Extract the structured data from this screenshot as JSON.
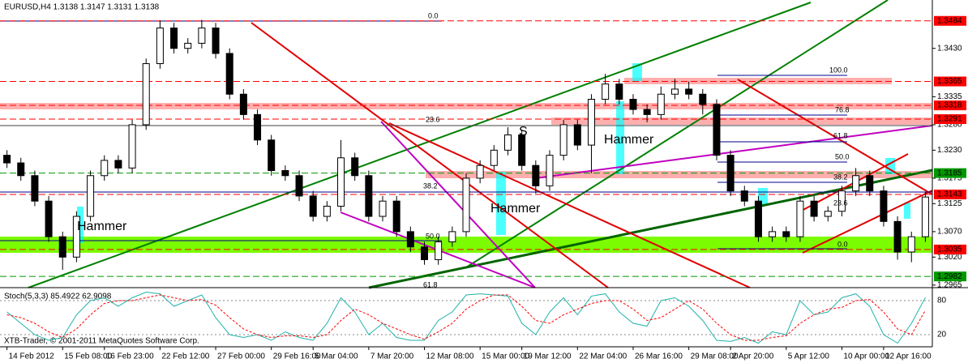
{
  "chart_data": [
    {
      "type": "candlestick",
      "title": "EURUSD,H4  1.3138 1.3147 1.3131 1.3138",
      "categories": [
        "14 Feb 2012",
        null,
        null,
        null,
        "15 Feb 08:00",
        null,
        null,
        "16 Feb 23:00",
        null,
        null,
        null,
        "22 Feb 12:00",
        null,
        null,
        null,
        "27 Feb 00:00",
        null,
        null,
        null,
        "29 Feb 16:00",
        null,
        null,
        "5 Mar 04:00",
        null,
        null,
        null,
        "7 Mar 20:00",
        null,
        null,
        null,
        "12 Mar 08:00",
        null,
        null,
        null,
        "15 Mar 00:00",
        null,
        null,
        "19 Mar 12:00",
        null,
        null,
        null,
        "22 Mar 04:00",
        null,
        null,
        null,
        "26 Mar 16:00",
        null,
        null,
        null,
        "29 Mar 08:00",
        null,
        null,
        "2 Apr 20:00",
        null,
        null,
        null,
        "5 Apr 12:00",
        null,
        null,
        null,
        "10 Apr 00:00",
        null,
        null,
        "12 Apr 16:00",
        null,
        null,
        null
      ],
      "open": [
        1.322,
        1.3205,
        1.318,
        1.313,
        1.306,
        1.302,
        1.31,
        1.318,
        1.321,
        1.3195,
        1.328,
        1.34,
        1.347,
        1.343,
        1.344,
        1.347,
        1.342,
        1.334,
        1.33,
        1.325,
        1.319,
        1.318,
        1.314,
        1.31,
        1.312,
        1.3215,
        1.318,
        1.31,
        1.313,
        1.307,
        1.304,
        1.3015,
        1.305,
        1.307,
        1.3175,
        1.32,
        1.323,
        1.326,
        1.32,
        1.316,
        1.322,
        1.328,
        1.324,
        1.333,
        1.336,
        1.333,
        1.331,
        1.33,
        1.334,
        1.335,
        1.334,
        1.332,
        1.322,
        1.315,
        1.313,
        1.306,
        1.307,
        1.306,
        1.313,
        1.31,
        1.311,
        1.315,
        1.318,
        1.315,
        1.309,
        1.303,
        1.306
      ],
      "high": [
        1.323,
        1.3215,
        1.319,
        1.314,
        1.307,
        1.311,
        1.319,
        1.322,
        1.322,
        1.329,
        1.341,
        1.3485,
        1.348,
        1.345,
        1.3486,
        1.348,
        1.343,
        1.335,
        1.331,
        1.326,
        1.32,
        1.319,
        1.315,
        1.313,
        1.325,
        1.3225,
        1.319,
        1.314,
        1.314,
        1.308,
        1.305,
        1.306,
        1.308,
        1.3185,
        1.321,
        1.324,
        1.3275,
        1.327,
        1.321,
        1.323,
        1.329,
        1.329,
        1.334,
        1.338,
        1.337,
        1.334,
        1.332,
        1.3355,
        1.337,
        1.3365,
        1.335,
        1.333,
        1.323,
        1.316,
        1.314,
        1.308,
        1.308,
        1.314,
        1.314,
        1.312,
        1.316,
        1.3195,
        1.319,
        1.316,
        1.31,
        1.307,
        1.3147
      ],
      "low": [
        1.3195,
        1.317,
        1.312,
        1.305,
        1.2995,
        1.301,
        1.309,
        1.317,
        1.3185,
        1.3185,
        1.327,
        1.339,
        1.342,
        1.342,
        1.343,
        1.341,
        1.333,
        1.329,
        1.324,
        1.318,
        1.317,
        1.313,
        1.309,
        1.309,
        1.311,
        1.317,
        1.309,
        1.309,
        1.306,
        1.303,
        1.3005,
        1.3005,
        1.304,
        1.306,
        1.3165,
        1.319,
        1.322,
        1.319,
        1.3145,
        1.315,
        1.321,
        1.323,
        1.3185,
        1.332,
        1.332,
        1.33,
        1.3285,
        1.329,
        1.333,
        1.333,
        1.33,
        1.321,
        1.314,
        1.312,
        1.305,
        1.305,
        1.305,
        1.305,
        1.309,
        1.309,
        1.31,
        1.314,
        1.314,
        1.308,
        1.3015,
        1.301,
        1.305
      ],
      "close": [
        1.3205,
        1.318,
        1.313,
        1.306,
        1.302,
        1.31,
        1.318,
        1.321,
        1.3195,
        1.328,
        1.34,
        1.347,
        1.343,
        1.344,
        1.347,
        1.342,
        1.334,
        1.33,
        1.325,
        1.319,
        1.318,
        1.314,
        1.31,
        1.312,
        1.3215,
        1.318,
        1.31,
        1.313,
        1.307,
        1.304,
        1.3015,
        1.305,
        1.307,
        1.3175,
        1.32,
        1.323,
        1.326,
        1.32,
        1.316,
        1.322,
        1.328,
        1.324,
        1.333,
        1.336,
        1.333,
        1.331,
        1.33,
        1.334,
        1.335,
        1.334,
        1.332,
        1.322,
        1.315,
        1.313,
        1.306,
        1.307,
        1.306,
        1.313,
        1.31,
        1.311,
        1.315,
        1.318,
        1.315,
        1.309,
        1.303,
        1.306,
        1.3138
      ],
      "ylim": [
        1.296,
        1.3525
      ],
      "yticks": [
        {
          "value": 1.343,
          "label": "1.3430"
        },
        1.3335,
        {
          "value": 1.328,
          "label": "1.3280"
        },
        {
          "value": 1.323,
          "label": "1.3230"
        },
        1.3175,
        1.3125,
        {
          "value": 1.307,
          "label": "1.3070"
        },
        {
          "value": 1.302,
          "label": "1.3020"
        },
        1.2965
      ],
      "levels": [
        {
          "value": 1.3484,
          "color": "#ff0000"
        },
        {
          "value": 1.3365,
          "color": "#ff0000"
        },
        {
          "value": 1.3318,
          "color": "#ff0000"
        },
        {
          "value": 1.3291,
          "color": "#ff0000"
        },
        {
          "value": 1.3185,
          "color": "#009900"
        },
        {
          "value": 1.3143,
          "color": "#ff0000"
        },
        {
          "value": 1.3035,
          "color": "#ff0000"
        },
        {
          "value": 1.2982,
          "color": "#009900"
        }
      ],
      "annotations": [
        "Hammer",
        "Hammer",
        "Hammer",
        "S",
        "0.0",
        "23.6",
        "38.2",
        "50.0",
        "61.8",
        "100.0",
        "76.8",
        "61.8",
        "50.0",
        "38.2",
        "23.6",
        "0.0"
      ]
    },
    {
      "type": "line",
      "title": "Stoch(5,3,3) 85.4922 62.9098",
      "ylim": [
        0,
        100
      ],
      "yticks": [
        20,
        80
      ],
      "series": [
        {
          "color": "#20b2aa",
          "values": [
            60,
            40,
            20,
            10,
            15,
            55,
            80,
            85,
            70,
            85,
            95,
            92,
            70,
            80,
            90,
            50,
            20,
            15,
            20,
            10,
            25,
            15,
            10,
            40,
            85,
            60,
            20,
            40,
            15,
            10,
            10,
            45,
            60,
            90,
            92,
            90,
            88,
            40,
            20,
            60,
            85,
            55,
            88,
            92,
            60,
            40,
            35,
            80,
            85,
            70,
            45,
            10,
            8,
            15,
            5,
            25,
            20,
            80,
            55,
            60,
            85,
            92,
            70,
            20,
            5,
            40,
            85.4922
          ]
        },
        {
          "color": "#ff0000",
          "values": [
            55,
            50,
            40,
            25,
            15,
            30,
            55,
            75,
            80,
            80,
            85,
            90,
            85,
            80,
            82,
            72,
            50,
            30,
            20,
            15,
            18,
            18,
            15,
            20,
            45,
            65,
            55,
            40,
            30,
            20,
            12,
            25,
            40,
            65,
            80,
            90,
            90,
            70,
            45,
            40,
            55,
            65,
            75,
            80,
            80,
            65,
            45,
            50,
            65,
            80,
            65,
            40,
            20,
            10,
            10,
            15,
            18,
            40,
            55,
            65,
            68,
            80,
            82,
            60,
            30,
            20,
            62.9098
          ]
        }
      ]
    }
  ],
  "footer": "XTB-Trader, © 2001-2011 MetaQuotes Software Corp."
}
